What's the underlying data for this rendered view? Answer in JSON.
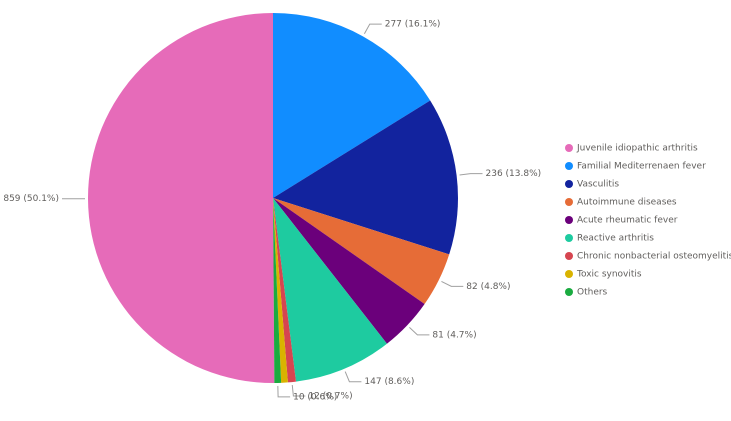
{
  "chart_data": {
    "type": "pie",
    "categories": [
      "Juvenile idiopathic arthritis",
      "Familial Mediterrenaen fever",
      "Vasculitis",
      "Autoimmune diseases",
      "Acute rheumatic fever",
      "Reactive arthritis",
      "Chronic nonbacterial osteomyelitis",
      "Toxic synovitis",
      "Others"
    ],
    "values": [
      859,
      277,
      236,
      82,
      81,
      147,
      12,
      10,
      10
    ],
    "value_labels": [
      "859 (50.1%)",
      "277 (16.1%)",
      "236 (13.8%)",
      "82 (4.8%)",
      "81 (4.7%)",
      "147 (8.6%)",
      "12 (0.7%)",
      null,
      "10 (0.6%)"
    ],
    "colors": [
      "#e66bb9",
      "#118dff",
      "#12239e",
      "#e66c37",
      "#6b007b",
      "#1ecba0",
      "#d64550",
      "#d9b300",
      "#1aab40"
    ],
    "legend": "right"
  }
}
